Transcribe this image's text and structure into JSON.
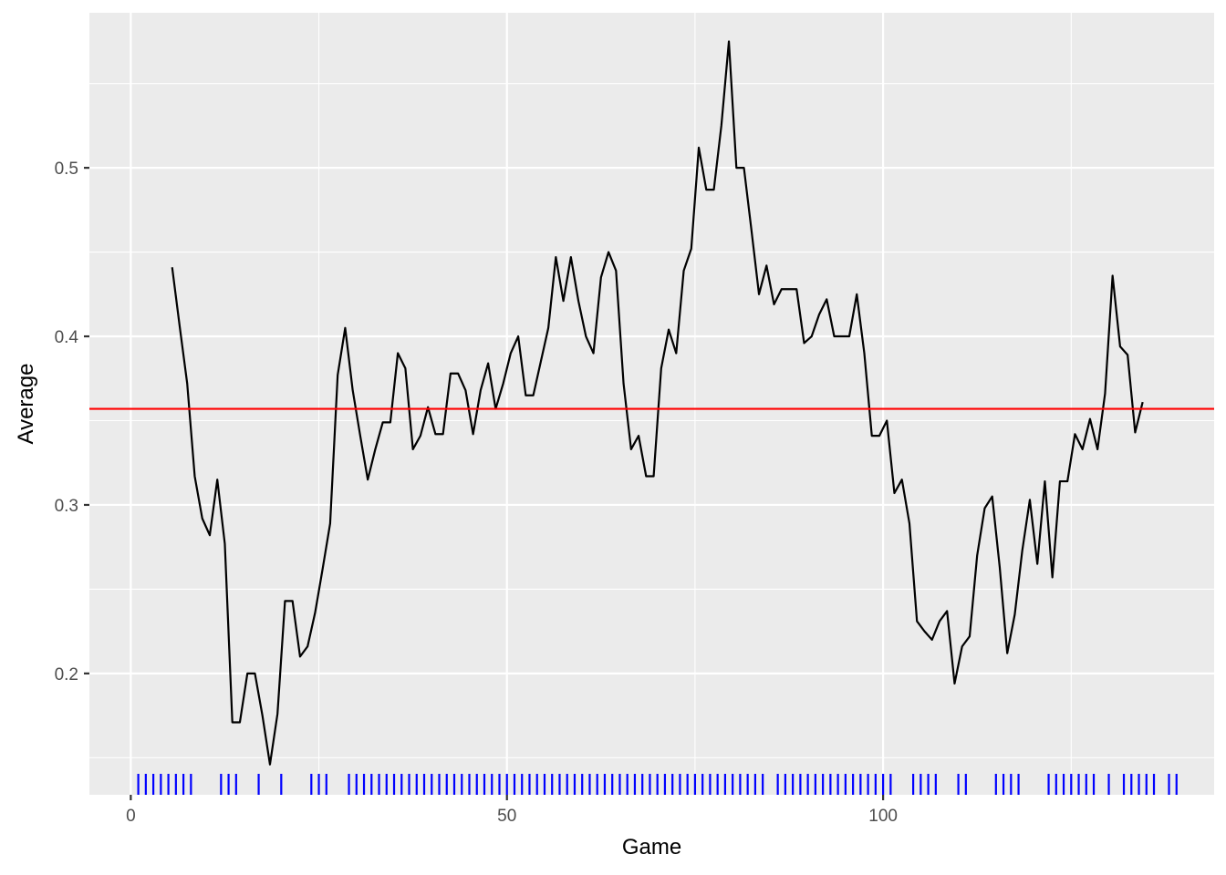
{
  "chart_data": {
    "type": "line",
    "title": "",
    "xlabel": "Game",
    "ylabel": "Average",
    "xlim": [
      -5.5,
      144
    ],
    "ylim": [
      0.128,
      0.592
    ],
    "x_ticks": [
      0,
      50,
      100
    ],
    "x_tick_labels": [
      "0",
      "50",
      "100"
    ],
    "y_ticks": [
      0.2,
      0.3,
      0.4,
      0.5
    ],
    "y_tick_labels": [
      "0.2",
      "0.3",
      "0.4",
      "0.5"
    ],
    "grid": true,
    "background": "#ebebeb",
    "line_color": "#000000",
    "reference_line": {
      "y": 0.357,
      "color": "#ff0000"
    },
    "rug": {
      "color": "#0000ff",
      "x": [
        1,
        2,
        3,
        4,
        5,
        6,
        7,
        8,
        12,
        13,
        14,
        17,
        20,
        24,
        25,
        26,
        29,
        30,
        31,
        32,
        33,
        34,
        35,
        36,
        37,
        38,
        39,
        40,
        41,
        42,
        43,
        44,
        45,
        46,
        47,
        48,
        49,
        50,
        51,
        52,
        53,
        54,
        55,
        56,
        57,
        58,
        59,
        60,
        61,
        62,
        63,
        64,
        65,
        66,
        67,
        68,
        69,
        70,
        71,
        72,
        73,
        74,
        75,
        76,
        77,
        78,
        79,
        80,
        81,
        82,
        83,
        84,
        86,
        87,
        88,
        89,
        90,
        91,
        92,
        93,
        94,
        95,
        96,
        97,
        98,
        99,
        100,
        101,
        104,
        105,
        106,
        107,
        110,
        111,
        115,
        116,
        117,
        118,
        122,
        123,
        124,
        125,
        126,
        127,
        128,
        130,
        132,
        133,
        134,
        135,
        136,
        138,
        139
      ]
    },
    "series": [
      {
        "x": [
          5.5,
          6.5,
          7.5,
          8.5,
          9.5,
          10.5,
          11.5,
          12.5,
          13.5,
          14.5,
          15.5,
          16.5,
          17.5,
          18.5,
          19.5,
          20.5,
          21.5,
          22.5,
          23.5,
          24.5,
          25.5,
          26.5,
          27.5,
          28.5,
          29.5,
          30.5,
          31.5,
          32.5,
          33.5,
          34.5,
          35.5,
          36.5,
          37.5,
          38.5,
          39.5,
          40.5,
          41.5,
          42.5,
          43.5,
          44.5,
          45.5,
          46.5,
          47.5,
          48.5,
          49.5,
          50.5,
          51.5,
          52.5,
          53.5,
          54.5,
          55.5,
          56.5,
          57.5,
          58.5,
          59.5,
          60.5,
          61.5,
          62.5,
          63.5,
          64.5,
          65.5,
          66.5,
          67.5,
          68.5,
          69.5,
          70.5,
          71.5,
          72.5,
          73.5,
          74.5,
          75.5,
          76.5,
          77.5,
          78.5,
          79.5,
          80.5,
          81.5,
          82.5,
          83.5,
          84.5,
          85.5,
          86.5,
          87.5,
          88.5,
          89.5,
          90.5,
          91.5,
          92.5,
          93.5,
          94.5,
          95.5,
          96.5,
          97.5,
          98.5,
          99.5,
          100.5,
          101.5,
          102.5,
          103.5,
          104.5,
          105.5,
          106.5,
          107.5,
          108.5,
          109.5,
          110.5,
          111.5,
          112.5,
          113.5,
          114.5,
          115.5,
          116.5,
          117.5,
          118.5,
          119.5,
          120.5,
          121.5,
          122.5,
          123.5,
          124.5,
          125.5,
          126.5,
          127.5,
          128.5,
          129.5,
          130.5,
          131.5,
          132.5,
          133.5,
          134.5
        ],
        "values": [
          0.441,
          0.406,
          0.372,
          0.317,
          0.292,
          0.282,
          0.315,
          0.277,
          0.171,
          0.171,
          0.2,
          0.2,
          0.175,
          0.146,
          0.176,
          0.243,
          0.243,
          0.21,
          0.216,
          0.236,
          0.262,
          0.289,
          0.377,
          0.405,
          0.368,
          0.341,
          0.315,
          0.333,
          0.349,
          0.349,
          0.39,
          0.381,
          0.333,
          0.341,
          0.358,
          0.342,
          0.342,
          0.378,
          0.378,
          0.368,
          0.342,
          0.368,
          0.384,
          0.357,
          0.372,
          0.39,
          0.4,
          0.365,
          0.365,
          0.385,
          0.405,
          0.447,
          0.421,
          0.447,
          0.421,
          0.4,
          0.39,
          0.435,
          0.45,
          0.439,
          0.372,
          0.333,
          0.341,
          0.317,
          0.317,
          0.381,
          0.404,
          0.39,
          0.439,
          0.452,
          0.512,
          0.487,
          0.487,
          0.525,
          0.575,
          0.5,
          0.5,
          0.463,
          0.425,
          0.442,
          0.419,
          0.428,
          0.428,
          0.428,
          0.396,
          0.4,
          0.413,
          0.422,
          0.4,
          0.4,
          0.4,
          0.425,
          0.39,
          0.341,
          0.341,
          0.35,
          0.307,
          0.315,
          0.289,
          0.231,
          0.225,
          0.22,
          0.231,
          0.237,
          0.194,
          0.216,
          0.222,
          0.27,
          0.298,
          0.305,
          0.263,
          0.212,
          0.235,
          0.273,
          0.303,
          0.265,
          0.314,
          0.257,
          0.314,
          0.314,
          0.342,
          0.333,
          0.351,
          0.333,
          0.366,
          0.436,
          0.394,
          0.389,
          0.343,
          0.361
        ]
      }
    ]
  }
}
